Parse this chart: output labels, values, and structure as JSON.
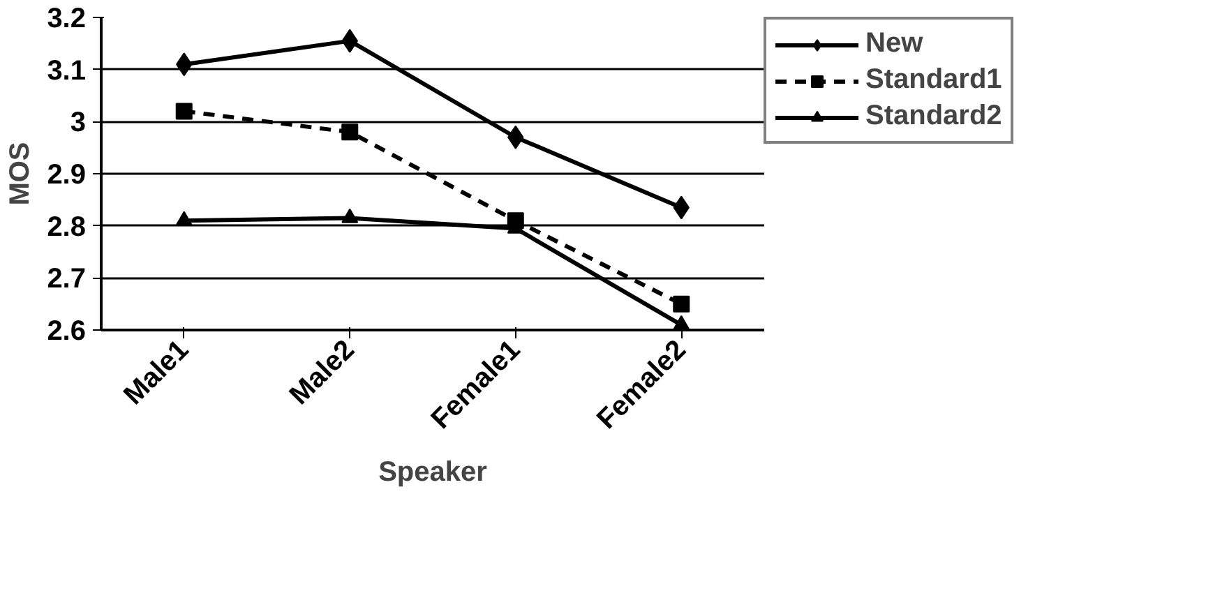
{
  "chart_data": {
    "type": "line",
    "xlabel": "Speaker",
    "ylabel": "MOS",
    "categories": [
      "Male1",
      "Male2",
      "Female1",
      "Female2"
    ],
    "series": [
      {
        "name": "New",
        "color": "#000000",
        "marker": "diamond",
        "line_style": "solid",
        "values": [
          3.11,
          3.155,
          2.97,
          2.835
        ]
      },
      {
        "name": "Standard1",
        "color": "#000000",
        "marker": "square",
        "line_style": "dashed",
        "values": [
          3.02,
          2.98,
          2.81,
          2.65
        ]
      },
      {
        "name": "Standard2",
        "color": "#000000",
        "marker": "triangle",
        "line_style": "solid",
        "values": [
          2.81,
          2.815,
          2.795,
          2.61
        ]
      }
    ],
    "ylim": [
      2.6,
      3.2
    ],
    "yticks": [
      2.6,
      2.7,
      2.8,
      2.9,
      {
        "value": 3.0,
        "label": "3"
      },
      3.1,
      3.2
    ],
    "grid": "y",
    "legend": "right"
  }
}
